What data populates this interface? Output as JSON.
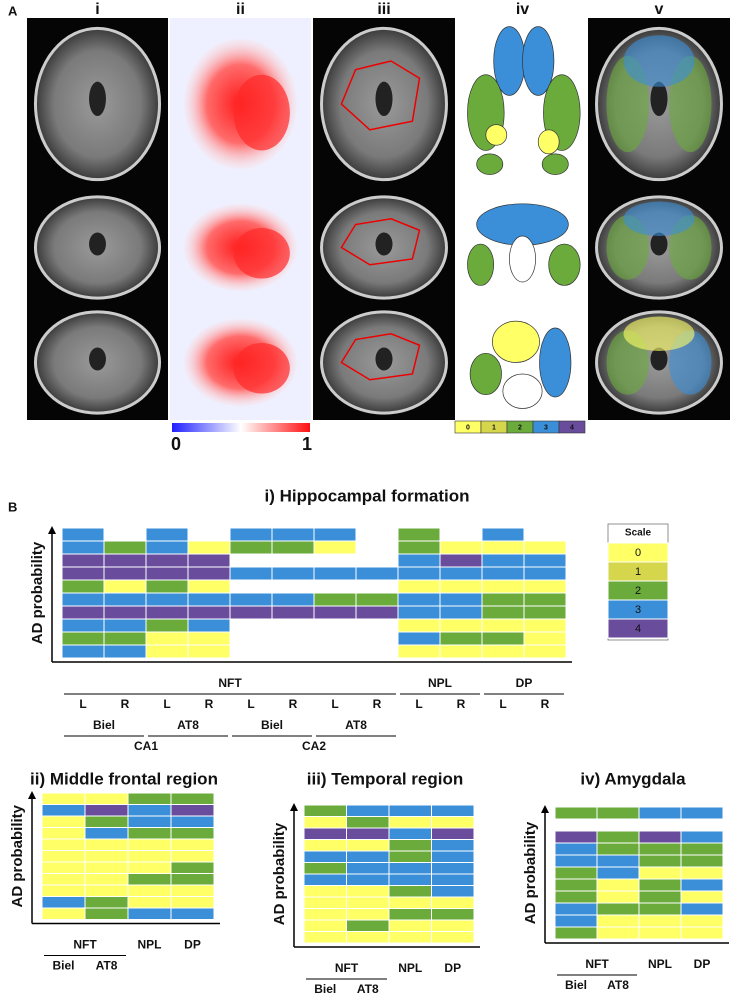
{
  "panel_a": {
    "label": "A",
    "columns": [
      "i",
      "ii",
      "iii",
      "iv",
      "v"
    ],
    "colorbar": {
      "min": 0,
      "max": 1
    },
    "region_scale": [
      0,
      1,
      2,
      3,
      4
    ]
  },
  "panel_b": {
    "label": "B"
  },
  "scale": {
    "title": "Scale",
    "levels": [
      0,
      1,
      2,
      3,
      4
    ],
    "colors": [
      "#ffff66",
      "#d6d64c",
      "#6aab3c",
      "#3a8fd8",
      "#6a4c9c"
    ]
  },
  "chart_data": [
    {
      "type": "heatmap",
      "title": "i) Hippocampal formation",
      "ylabel": "AD probability",
      "x_levels": [
        [
          {
            "label": "NFT",
            "span": 8
          },
          {
            "label": "NPL",
            "span": 2
          },
          {
            "label": "DP",
            "span": 2
          }
        ],
        [
          {
            "label": "L",
            "span": 1
          },
          {
            "label": "R",
            "span": 1
          },
          {
            "label": "L",
            "span": 1
          },
          {
            "label": "R",
            "span": 1
          },
          {
            "label": "L",
            "span": 1
          },
          {
            "label": "R",
            "span": 1
          },
          {
            "label": "L",
            "span": 1
          },
          {
            "label": "R",
            "span": 1
          },
          {
            "label": "L",
            "span": 1
          },
          {
            "label": "R",
            "span": 1
          },
          {
            "label": "L",
            "span": 1
          },
          {
            "label": "R",
            "span": 1
          }
        ],
        [
          {
            "label": "Biel",
            "span": 2
          },
          {
            "label": "AT8",
            "span": 2
          },
          {
            "label": "Biel",
            "span": 2
          },
          {
            "label": "AT8",
            "span": 2
          }
        ],
        [
          {
            "label": "CA1",
            "span": 4
          },
          {
            "label": "CA2",
            "span": 4
          }
        ]
      ],
      "values": [
        [
          3,
          null,
          3,
          null,
          3,
          3,
          3,
          null,
          2,
          null,
          3,
          null
        ],
        [
          3,
          2,
          3,
          0,
          2,
          2,
          0,
          null,
          2,
          0,
          0,
          0
        ],
        [
          4,
          4,
          4,
          4,
          null,
          null,
          null,
          null,
          3,
          4,
          3,
          3
        ],
        [
          4,
          4,
          4,
          4,
          3,
          3,
          3,
          3,
          3,
          3,
          3,
          3
        ],
        [
          2,
          0,
          2,
          0,
          null,
          null,
          null,
          null,
          0,
          0,
          0,
          0
        ],
        [
          3,
          3,
          3,
          3,
          3,
          3,
          2,
          2,
          3,
          3,
          2,
          2
        ],
        [
          4,
          4,
          4,
          4,
          4,
          4,
          4,
          4,
          3,
          3,
          2,
          2
        ],
        [
          3,
          3,
          2,
          3,
          null,
          null,
          null,
          null,
          0,
          0,
          0,
          0
        ],
        [
          2,
          2,
          0,
          0,
          null,
          null,
          null,
          null,
          3,
          2,
          2,
          0
        ],
        [
          3,
          3,
          0,
          0,
          null,
          null,
          null,
          null,
          0,
          0,
          0,
          0
        ]
      ]
    },
    {
      "type": "heatmap",
      "title": "ii) Middle frontal region",
      "ylabel": "AD probability",
      "x_levels": [
        [
          {
            "label": "NFT",
            "span": 2
          },
          {
            "label": "NPL",
            "span": 1
          },
          {
            "label": "DP",
            "span": 1
          }
        ],
        [
          {
            "label": "Biel",
            "span": 1
          },
          {
            "label": "AT8",
            "span": 1
          }
        ]
      ],
      "values": [
        [
          0,
          0,
          2,
          2
        ],
        [
          3,
          4,
          3,
          4
        ],
        [
          0,
          2,
          3,
          3
        ],
        [
          0,
          3,
          2,
          2
        ],
        [
          0,
          0,
          0,
          0
        ],
        [
          0,
          0,
          0,
          0
        ],
        [
          0,
          0,
          0,
          2
        ],
        [
          0,
          0,
          2,
          2
        ],
        [
          0,
          0,
          0,
          0
        ],
        [
          3,
          2,
          0,
          0
        ],
        [
          0,
          2,
          3,
          3
        ]
      ]
    },
    {
      "type": "heatmap",
      "title": "iii) Temporal region",
      "ylabel": "AD probability",
      "x_levels": [
        [
          {
            "label": "NFT",
            "span": 2
          },
          {
            "label": "NPL",
            "span": 1
          },
          {
            "label": "DP",
            "span": 1
          }
        ],
        [
          {
            "label": "Biel",
            "span": 1
          },
          {
            "label": "AT8",
            "span": 1
          }
        ]
      ],
      "values": [
        [
          2,
          3,
          3,
          3
        ],
        [
          0,
          2,
          0,
          0
        ],
        [
          4,
          4,
          3,
          4
        ],
        [
          0,
          0,
          2,
          3
        ],
        [
          3,
          3,
          2,
          3
        ],
        [
          2,
          3,
          3,
          3
        ],
        [
          3,
          3,
          3,
          3
        ],
        [
          0,
          0,
          2,
          3
        ],
        [
          0,
          0,
          0,
          0
        ],
        [
          0,
          0,
          2,
          2
        ],
        [
          0,
          2,
          0,
          0
        ],
        [
          0,
          0,
          0,
          0
        ]
      ]
    },
    {
      "type": "heatmap",
      "title": "iv) Amygdala",
      "ylabel": "AD probability",
      "x_levels": [
        [
          {
            "label": "NFT",
            "span": 2
          },
          {
            "label": "NPL",
            "span": 1
          },
          {
            "label": "DP",
            "span": 1
          }
        ],
        [
          {
            "label": "Biel",
            "span": 1
          },
          {
            "label": "AT8",
            "span": 1
          }
        ]
      ],
      "values": [
        [
          2,
          2,
          3,
          3
        ],
        [
          null,
          null,
          null,
          null
        ],
        [
          4,
          2,
          4,
          3
        ],
        [
          3,
          2,
          2,
          2
        ],
        [
          3,
          3,
          2,
          2
        ],
        [
          2,
          3,
          0,
          0
        ],
        [
          2,
          0,
          2,
          3
        ],
        [
          2,
          0,
          2,
          0
        ],
        [
          3,
          2,
          2,
          3
        ],
        [
          3,
          0,
          0,
          0
        ],
        [
          2,
          0,
          0,
          0
        ]
      ]
    }
  ]
}
